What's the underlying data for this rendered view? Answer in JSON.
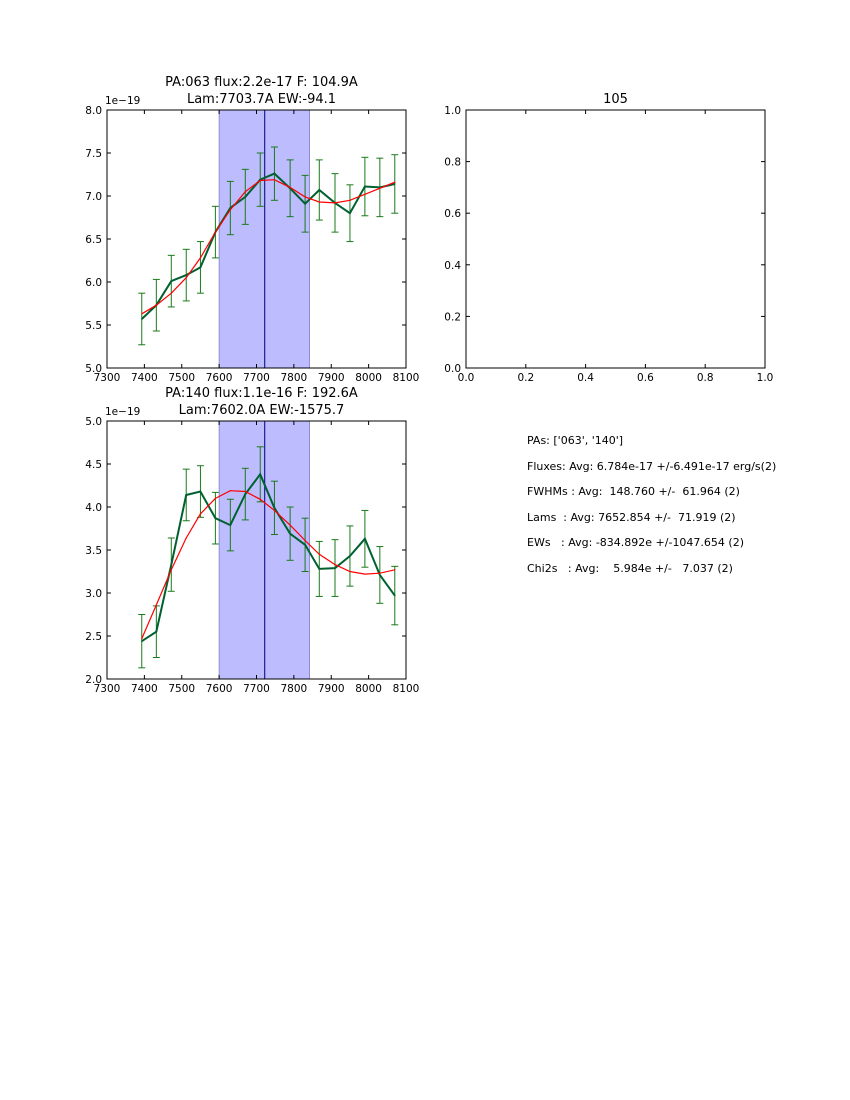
{
  "colors": {
    "data_line": "#006030",
    "errorbar": "#1a7a1a",
    "fit_line": "#ff0000",
    "band_fill": "#bcbcff",
    "vline": "#000080"
  },
  "chart_data": [
    {
      "type": "line",
      "title": "PA:063 flux:2.2e-17 F: 104.9A",
      "subtitle": "Lam:7703.7A EW:-94.1",
      "offset_label": "1e−19",
      "xlim": [
        7300,
        8100
      ],
      "ylim": [
        5.0,
        8.0
      ],
      "xticks": [
        7300,
        7400,
        7500,
        7600,
        7700,
        7800,
        7900,
        8000,
        8100
      ],
      "xtick_labels": [
        "7300",
        "7400",
        "7500",
        "7600",
        "7700",
        "7800",
        "7900",
        "8000",
        "8100"
      ],
      "yticks": [
        5.0,
        5.5,
        6.0,
        6.5,
        7.0,
        7.5,
        8.0
      ],
      "ytick_labels": [
        "5.0",
        "5.5",
        "6.0",
        "6.5",
        "7.0",
        "7.5",
        "8.0"
      ],
      "band": [
        7600,
        7842
      ],
      "vline": 7722,
      "series": [
        {
          "name": "data",
          "x": [
            7393,
            7432,
            7472,
            7512,
            7550,
            7590,
            7630,
            7670,
            7710,
            7748,
            7790,
            7830,
            7868,
            7910,
            7950,
            7990,
            8030,
            8070
          ],
          "y": [
            5.57,
            5.73,
            6.01,
            6.08,
            6.17,
            6.58,
            6.86,
            6.99,
            7.19,
            7.26,
            7.09,
            6.91,
            7.07,
            6.92,
            6.8,
            7.11,
            7.1,
            7.14
          ],
          "err": [
            0.3,
            0.3,
            0.3,
            0.3,
            0.3,
            0.3,
            0.31,
            0.32,
            0.31,
            0.31,
            0.33,
            0.33,
            0.35,
            0.34,
            0.33,
            0.34,
            0.34,
            0.34
          ]
        },
        {
          "name": "fit",
          "x": [
            7393,
            7432,
            7472,
            7512,
            7550,
            7590,
            7630,
            7670,
            7710,
            7748,
            7790,
            7830,
            7868,
            7910,
            7950,
            7990,
            8030,
            8070
          ],
          "y": [
            5.63,
            5.73,
            5.87,
            6.05,
            6.28,
            6.58,
            6.84,
            7.05,
            7.18,
            7.19,
            7.1,
            6.99,
            6.93,
            6.92,
            6.95,
            7.02,
            7.09,
            7.16
          ]
        }
      ]
    },
    {
      "type": "line",
      "title": "105",
      "subtitle": "",
      "offset_label": "",
      "xlim": [
        0.0,
        1.0
      ],
      "ylim": [
        0.0,
        1.0
      ],
      "xticks": [
        0.0,
        0.2,
        0.4,
        0.6,
        0.8,
        1.0
      ],
      "xtick_labels": [
        "0.0",
        "0.2",
        "0.4",
        "0.6",
        "0.8",
        "1.0"
      ],
      "yticks": [
        0.0,
        0.2,
        0.4,
        0.6,
        0.8,
        1.0
      ],
      "ytick_labels": [
        "0.0",
        "0.2",
        "0.4",
        "0.6",
        "0.8",
        "1.0"
      ],
      "series": []
    },
    {
      "type": "line",
      "title": "PA:140 flux:1.1e-16 F: 192.6A",
      "subtitle": "Lam:7602.0A EW:-1575.7",
      "offset_label": "1e−19",
      "xlim": [
        7300,
        8100
      ],
      "ylim": [
        2.0,
        5.0
      ],
      "xticks": [
        7300,
        7400,
        7500,
        7600,
        7700,
        7800,
        7900,
        8000,
        8100
      ],
      "xtick_labels": [
        "7300",
        "7400",
        "7500",
        "7600",
        "7700",
        "7800",
        "7900",
        "8000",
        "8100"
      ],
      "yticks": [
        2.0,
        2.5,
        3.0,
        3.5,
        4.0,
        4.5,
        5.0
      ],
      "ytick_labels": [
        "2.0",
        "2.5",
        "3.0",
        "3.5",
        "4.0",
        "4.5",
        "5.0"
      ],
      "band": [
        7600,
        7842
      ],
      "vline": 7722,
      "series": [
        {
          "name": "data",
          "x": [
            7393,
            7432,
            7472,
            7512,
            7550,
            7590,
            7630,
            7670,
            7710,
            7748,
            7790,
            7830,
            7868,
            7910,
            7950,
            7990,
            8030,
            8070
          ],
          "y": [
            2.44,
            2.55,
            3.33,
            4.14,
            4.18,
            3.87,
            3.79,
            4.15,
            4.38,
            3.99,
            3.69,
            3.56,
            3.28,
            3.29,
            3.43,
            3.63,
            3.21,
            2.97
          ],
          "err": [
            0.31,
            0.3,
            0.31,
            0.3,
            0.3,
            0.3,
            0.3,
            0.3,
            0.32,
            0.31,
            0.31,
            0.31,
            0.32,
            0.33,
            0.35,
            0.33,
            0.33,
            0.34
          ]
        },
        {
          "name": "fit",
          "x": [
            7393,
            7432,
            7472,
            7512,
            7550,
            7590,
            7630,
            7670,
            7710,
            7748,
            7790,
            7830,
            7868,
            7910,
            7950,
            7990,
            8030,
            8070
          ],
          "y": [
            2.47,
            2.86,
            3.27,
            3.64,
            3.92,
            4.1,
            4.19,
            4.18,
            4.09,
            3.96,
            3.79,
            3.61,
            3.45,
            3.33,
            3.25,
            3.22,
            3.23,
            3.27
          ]
        }
      ]
    }
  ],
  "summary": [
    "PAs: ['063', '140']",
    "Fluxes: Avg: 6.784e-17 +/-6.491e-17 erg/s(2)",
    "FWHMs : Avg:  148.760 +/-  61.964 (2)",
    "Lams  : Avg: 7652.854 +/-  71.919 (2)",
    "EWs   : Avg: -834.892e +/-1047.654 (2)",
    "Chi2s   : Avg:    5.984e +/-   7.037 (2)"
  ]
}
